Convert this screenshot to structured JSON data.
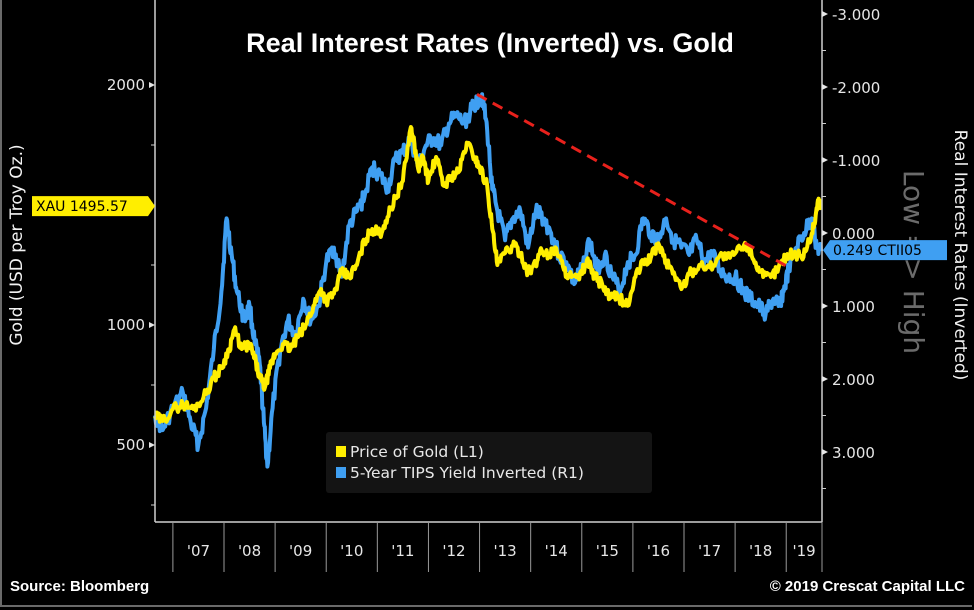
{
  "chart_data": {
    "type": "line",
    "title": "Real Interest Rates (Inverted) vs. Gold",
    "left_axis": {
      "label": "Gold (USD per Troy Oz.)",
      "ticks": [
        500,
        1000,
        2000
      ],
      "tick_labels": [
        "500",
        "1000",
        "2000"
      ],
      "range": [
        240,
        2350
      ]
    },
    "right_axis": {
      "label": "Real Interest Rates (Inverted)",
      "inverted": true,
      "ticks": [
        -3,
        -2,
        -1,
        0,
        1,
        2,
        3
      ],
      "tick_labels": [
        "-3.000",
        "-2.000",
        "-1.000",
        "0.000",
        "1.000",
        "2.000",
        "3.000"
      ],
      "range": [
        -3.2,
        4.0
      ],
      "annotation": "Low => High"
    },
    "x_axis": {
      "tick_labels": [
        "'07",
        "'08",
        "'09",
        "'10",
        "'11",
        "'12",
        "'13",
        "'14",
        "'15",
        "'16",
        "'17",
        "'18",
        "'19"
      ],
      "range": [
        2006.65,
        2019.7
      ]
    },
    "series": [
      {
        "name": "Price of Gold (L1)",
        "axis": "left",
        "color": "#ffee00",
        "x": [
          2006.65,
          2006.8,
          2007.0,
          2007.2,
          2007.4,
          2007.6,
          2007.8,
          2007.95,
          2008.1,
          2008.2,
          2008.35,
          2008.5,
          2008.6,
          2008.7,
          2008.8,
          2008.9,
          2009.0,
          2009.15,
          2009.3,
          2009.45,
          2009.6,
          2009.75,
          2009.9,
          2010.0,
          2010.15,
          2010.3,
          2010.45,
          2010.6,
          2010.75,
          2010.9,
          2011.05,
          2011.2,
          2011.35,
          2011.5,
          2011.65,
          2011.7,
          2011.8,
          2011.9,
          2012.0,
          2012.15,
          2012.3,
          2012.45,
          2012.6,
          2012.75,
          2012.9,
          2013.0,
          2013.15,
          2013.25,
          2013.35,
          2013.5,
          2013.65,
          2013.8,
          2013.95,
          2014.1,
          2014.2,
          2014.35,
          2014.5,
          2014.65,
          2014.8,
          2014.95,
          2015.1,
          2015.25,
          2015.4,
          2015.55,
          2015.7,
          2015.9,
          2016.05,
          2016.2,
          2016.35,
          2016.5,
          2016.65,
          2016.8,
          2016.95,
          2017.1,
          2017.3,
          2017.5,
          2017.7,
          2017.9,
          2018.1,
          2018.25,
          2018.4,
          2018.55,
          2018.7,
          2018.85,
          2019.0,
          2019.15,
          2019.3,
          2019.45,
          2019.55,
          2019.62,
          2019.68
        ],
        "values": [
          620,
          600,
          650,
          670,
          650,
          700,
          780,
          820,
          900,
          980,
          900,
          920,
          860,
          780,
          740,
          820,
          880,
          920,
          900,
          950,
          1000,
          1080,
          1150,
          1100,
          1130,
          1220,
          1200,
          1250,
          1350,
          1400,
          1380,
          1450,
          1530,
          1600,
          1820,
          1780,
          1650,
          1700,
          1600,
          1700,
          1580,
          1620,
          1640,
          1760,
          1700,
          1660,
          1580,
          1400,
          1250,
          1300,
          1330,
          1300,
          1220,
          1250,
          1320,
          1290,
          1320,
          1230,
          1200,
          1190,
          1270,
          1200,
          1170,
          1110,
          1120,
          1080,
          1200,
          1260,
          1280,
          1340,
          1260,
          1220,
          1150,
          1210,
          1250,
          1240,
          1290,
          1280,
          1320,
          1330,
          1260,
          1200,
          1200,
          1240,
          1290,
          1300,
          1280,
          1350,
          1420,
          1520,
          1495
        ]
      },
      {
        "name": "5-Year TIPS Yield Inverted (R1)",
        "axis": "right",
        "color": "#3f9ff2",
        "x": [
          2006.65,
          2006.8,
          2007.0,
          2007.2,
          2007.35,
          2007.5,
          2007.65,
          2007.8,
          2007.95,
          2008.05,
          2008.15,
          2008.25,
          2008.4,
          2008.5,
          2008.6,
          2008.7,
          2008.78,
          2008.85,
          2008.95,
          2009.1,
          2009.25,
          2009.4,
          2009.55,
          2009.7,
          2009.85,
          2010.0,
          2010.15,
          2010.3,
          2010.45,
          2010.6,
          2010.75,
          2010.9,
          2011.05,
          2011.2,
          2011.35,
          2011.5,
          2011.65,
          2011.8,
          2011.95,
          2012.1,
          2012.25,
          2012.4,
          2012.55,
          2012.7,
          2012.85,
          2012.95,
          2013.05,
          2013.15,
          2013.25,
          2013.35,
          2013.5,
          2013.65,
          2013.8,
          2013.95,
          2014.1,
          2014.25,
          2014.4,
          2014.55,
          2014.7,
          2014.85,
          2015.0,
          2015.15,
          2015.3,
          2015.45,
          2015.6,
          2015.75,
          2015.9,
          2016.05,
          2016.2,
          2016.35,
          2016.5,
          2016.65,
          2016.8,
          2016.95,
          2017.1,
          2017.25,
          2017.4,
          2017.55,
          2017.7,
          2017.85,
          2018.0,
          2018.15,
          2018.3,
          2018.45,
          2018.6,
          2018.75,
          2018.85,
          2018.95,
          2019.05,
          2019.2,
          2019.35,
          2019.5,
          2019.6,
          2019.68
        ],
        "values": [
          2.5,
          2.7,
          2.4,
          2.2,
          2.6,
          2.9,
          2.4,
          1.6,
          0.8,
          -0.2,
          0.3,
          0.8,
          1.2,
          1.0,
          1.5,
          1.8,
          2.6,
          3.2,
          2.4,
          1.6,
          1.2,
          1.4,
          0.9,
          1.2,
          1.0,
          0.4,
          0.2,
          0.6,
          -0.1,
          -0.3,
          -0.5,
          -0.9,
          -0.8,
          -0.6,
          -1.0,
          -1.1,
          -1.3,
          -0.9,
          -1.2,
          -1.3,
          -1.2,
          -1.5,
          -1.6,
          -1.5,
          -1.7,
          -1.8,
          -1.9,
          -1.4,
          -0.6,
          -0.3,
          0.1,
          -0.2,
          -0.3,
          0.2,
          -0.3,
          -0.2,
          0.0,
          0.3,
          0.4,
          0.7,
          0.5,
          0.1,
          0.5,
          0.3,
          0.6,
          0.8,
          0.4,
          0.3,
          -0.2,
          0.0,
          0.1,
          -0.2,
          0.1,
          0.2,
          0.3,
          0.1,
          0.4,
          0.3,
          0.5,
          0.6,
          0.6,
          0.8,
          0.9,
          1.0,
          1.1,
          0.9,
          1.0,
          0.8,
          0.5,
          0.2,
          0.0,
          -0.2,
          0.2,
          0.249
        ]
      }
    ],
    "annotations": [
      {
        "type": "dashed-trendline",
        "color": "#e8211c",
        "from": {
          "x": 2012.95,
          "axis": "right",
          "value": -1.9
        },
        "to": {
          "x": 2019.0,
          "axis": "right",
          "value": 0.45
        }
      }
    ],
    "last_value_tags": [
      {
        "label": "XAU 1495.57",
        "axis": "left",
        "value": 1495.57,
        "color": "#ffee00"
      },
      {
        "label": "0.249 CTII05",
        "axis": "right",
        "value": 0.249,
        "color": "#3f9ff2"
      }
    ],
    "legend": {
      "position": "bottom-center",
      "entries": [
        "Price of Gold (L1)",
        "5-Year TIPS Yield Inverted (R1)"
      ]
    }
  },
  "footer": {
    "source": "Source: Bloomberg",
    "copyright": "© 2019 Crescat Capital LLC"
  }
}
